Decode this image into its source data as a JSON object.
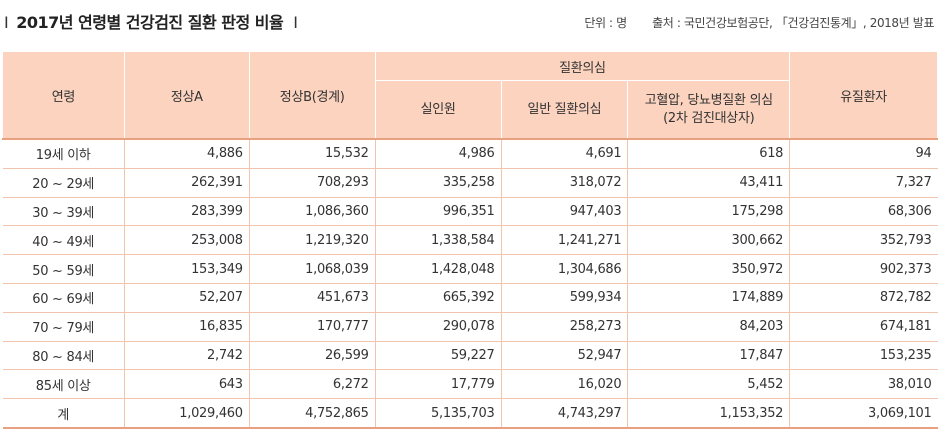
{
  "header": {
    "title": "2017년 연령별 건강검진 질환 판정 비율",
    "unit": "단위 : 명",
    "source": "출처 : 국민건강보험공단, 「건강검진통계」, 2018년 발표"
  },
  "table": {
    "headers": {
      "age": "연령",
      "normal_a": "정상A",
      "normal_b": "정상B(경계)",
      "suspect_group": "질환의심",
      "realinwon": "실인원",
      "general": "일반 질환의심",
      "hypertension": "고혈압, 당뇨병질환 의심 (2차 검진대상자)",
      "patients": "유질환자"
    },
    "rows": [
      {
        "age": "19세 이하",
        "normal_a": "4,886",
        "normal_b": "15,532",
        "realinwon": "4,986",
        "general": "4,691",
        "hypertension": "618",
        "patients": "94"
      },
      {
        "age": "20 ~ 29세",
        "normal_a": "262,391",
        "normal_b": "708,293",
        "realinwon": "335,258",
        "general": "318,072",
        "hypertension": "43,411",
        "patients": "7,327"
      },
      {
        "age": "30 ~ 39세",
        "normal_a": "283,399",
        "normal_b": "1,086,360",
        "realinwon": "996,351",
        "general": "947,403",
        "hypertension": "175,298",
        "patients": "68,306"
      },
      {
        "age": "40 ~ 49세",
        "normal_a": "253,008",
        "normal_b": "1,219,320",
        "realinwon": "1,338,584",
        "general": "1,241,271",
        "hypertension": "300,662",
        "patients": "352,793"
      },
      {
        "age": "50 ~ 59세",
        "normal_a": "153,349",
        "normal_b": "1,068,039",
        "realinwon": "1,428,048",
        "general": "1,304,686",
        "hypertension": "350,972",
        "patients": "902,373"
      },
      {
        "age": "60 ~ 69세",
        "normal_a": "52,207",
        "normal_b": "451,673",
        "realinwon": "665,392",
        "general": "599,934",
        "hypertension": "174,889",
        "patients": "872,782"
      },
      {
        "age": "70 ~ 79세",
        "normal_a": "16,835",
        "normal_b": "170,777",
        "realinwon": "290,078",
        "general": "258,273",
        "hypertension": "84,203",
        "patients": "674,181"
      },
      {
        "age": "80 ~ 84세",
        "normal_a": "2,742",
        "normal_b": "26,599",
        "realinwon": "59,227",
        "general": "52,947",
        "hypertension": "17,847",
        "patients": "153,235"
      },
      {
        "age": "85세 이상",
        "normal_a": "643",
        "normal_b": "6,272",
        "realinwon": "17,779",
        "general": "16,020",
        "hypertension": "5,452",
        "patients": "38,010"
      },
      {
        "age": "계",
        "normal_a": "1,029,460",
        "normal_b": "4,752,865",
        "realinwon": "5,135,703",
        "general": "4,743,297",
        "hypertension": "1,153,352",
        "patients": "3,069,101"
      }
    ]
  },
  "colors": {
    "header_bg": "#fbd3bf",
    "row_border": "#f1c4ad",
    "accent_border": "#e8a07f"
  }
}
